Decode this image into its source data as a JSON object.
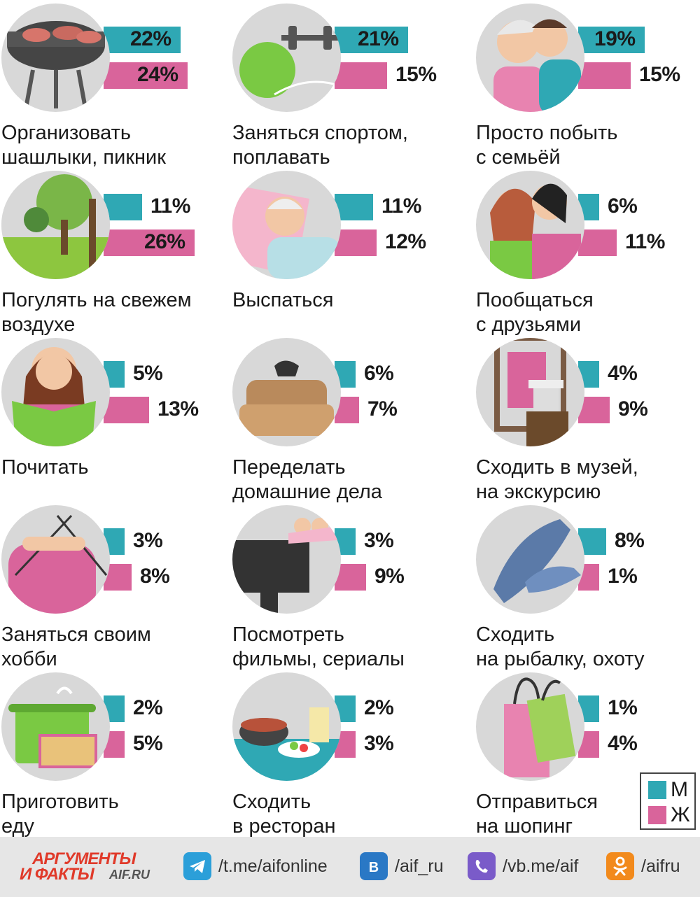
{
  "colors": {
    "men": "#2fa8b4",
    "women": "#d9649b",
    "text": "#1a1a1a"
  },
  "chart_data": {
    "type": "bar",
    "orientation": "horizontal",
    "unit": "%",
    "series": [
      {
        "name": "М",
        "color": "#2fa8b4"
      },
      {
        "name": "Ж",
        "color": "#d9649b"
      }
    ],
    "categories": [
      {
        "label_lines": [
          "Организовать",
          "шашлыки, пикник"
        ],
        "icon": "grill-icon",
        "men": 22,
        "women": 24,
        "men_label": "22%",
        "women_label": "24%"
      },
      {
        "label_lines": [
          "Заняться спортом,",
          "поплавать"
        ],
        "icon": "fitness-icon",
        "men": 21,
        "women": 15,
        "men_label": "21%",
        "women_label": "15%"
      },
      {
        "label_lines": [
          "Просто побыть",
          "с семьёй"
        ],
        "icon": "family-icon",
        "men": 19,
        "women": 15,
        "men_label": "19%",
        "women_label": "15%"
      },
      {
        "label_lines": [
          "Погулять на свежем",
          "воздухе"
        ],
        "icon": "trees-icon",
        "men": 11,
        "women": 26,
        "men_label": "11%",
        "women_label": "26%"
      },
      {
        "label_lines": [
          "Выспаться"
        ],
        "icon": "sleeping-person-icon",
        "men": 11,
        "women": 12,
        "men_label": "11%",
        "women_label": "12%"
      },
      {
        "label_lines": [
          "Пообщаться",
          "с друзьями"
        ],
        "icon": "friends-icon",
        "men": 6,
        "women": 11,
        "men_label": "6%",
        "women_label": "11%"
      },
      {
        "label_lines": [
          "Почитать"
        ],
        "icon": "reading-girl-icon",
        "men": 5,
        "women": 13,
        "men_label": "5%",
        "women_label": "13%"
      },
      {
        "label_lines": [
          "Переделать",
          "домашние дела"
        ],
        "icon": "armchair-cat-icon",
        "men": 6,
        "women": 7,
        "men_label": "6%",
        "women_label": "7%"
      },
      {
        "label_lines": [
          "Сходить в музей,",
          "на экскурсию"
        ],
        "icon": "museum-icon",
        "men": 4,
        "women": 9,
        "men_label": "4%",
        "women_label": "9%"
      },
      {
        "label_lines": [
          "Заняться своим",
          "хобби"
        ],
        "icon": "knitting-icon",
        "men": 3,
        "women": 8,
        "men_label": "3%",
        "women_label": "8%"
      },
      {
        "label_lines": [
          "Посмотреть",
          "фильмы, сериалы"
        ],
        "icon": "tv-icon",
        "men": 3,
        "women": 9,
        "men_label": "3%",
        "women_label": "9%"
      },
      {
        "label_lines": [
          "Сходить",
          "на рыбалку, охоту"
        ],
        "icon": "fish-icon",
        "men": 8,
        "women": 1,
        "men_label": "8%",
        "women_label": "1%"
      },
      {
        "label_lines": [
          "Приготовить",
          "еду"
        ],
        "icon": "cooking-pot-icon",
        "men": 2,
        "women": 5,
        "men_label": "2%",
        "women_label": "5%"
      },
      {
        "label_lines": [
          "Сходить",
          "в ресторан"
        ],
        "icon": "restaurant-icon",
        "men": 2,
        "women": 3,
        "men_label": "2%",
        "women_label": "3%"
      },
      {
        "label_lines": [
          "Отправиться",
          "на шопинг"
        ],
        "icon": "shopping-bags-icon",
        "men": 1,
        "women": 4,
        "men_label": "1%",
        "women_label": "4%"
      }
    ],
    "legend": {
      "position": "bottom-right",
      "items": [
        "М",
        "Ж"
      ]
    }
  },
  "legend": {
    "men": "М",
    "women": "Ж"
  },
  "footer": {
    "logo_line1": "АРГУМЕНТЫ",
    "logo_line2": "И ФАКТЫ",
    "logo_site": "AIF.RU",
    "links": [
      {
        "icon": "telegram-icon",
        "text": "/t.me/aifonline",
        "color": "#2b9fd9"
      },
      {
        "icon": "vk-icon",
        "text": "/aif_ru",
        "color": "#2a78c5"
      },
      {
        "icon": "viber-icon",
        "text": "/vb.me/aif",
        "color": "#7a5bc9"
      },
      {
        "icon": "odnoklassniki-icon",
        "text": "/aifru",
        "color": "#f28a1c"
      }
    ]
  }
}
